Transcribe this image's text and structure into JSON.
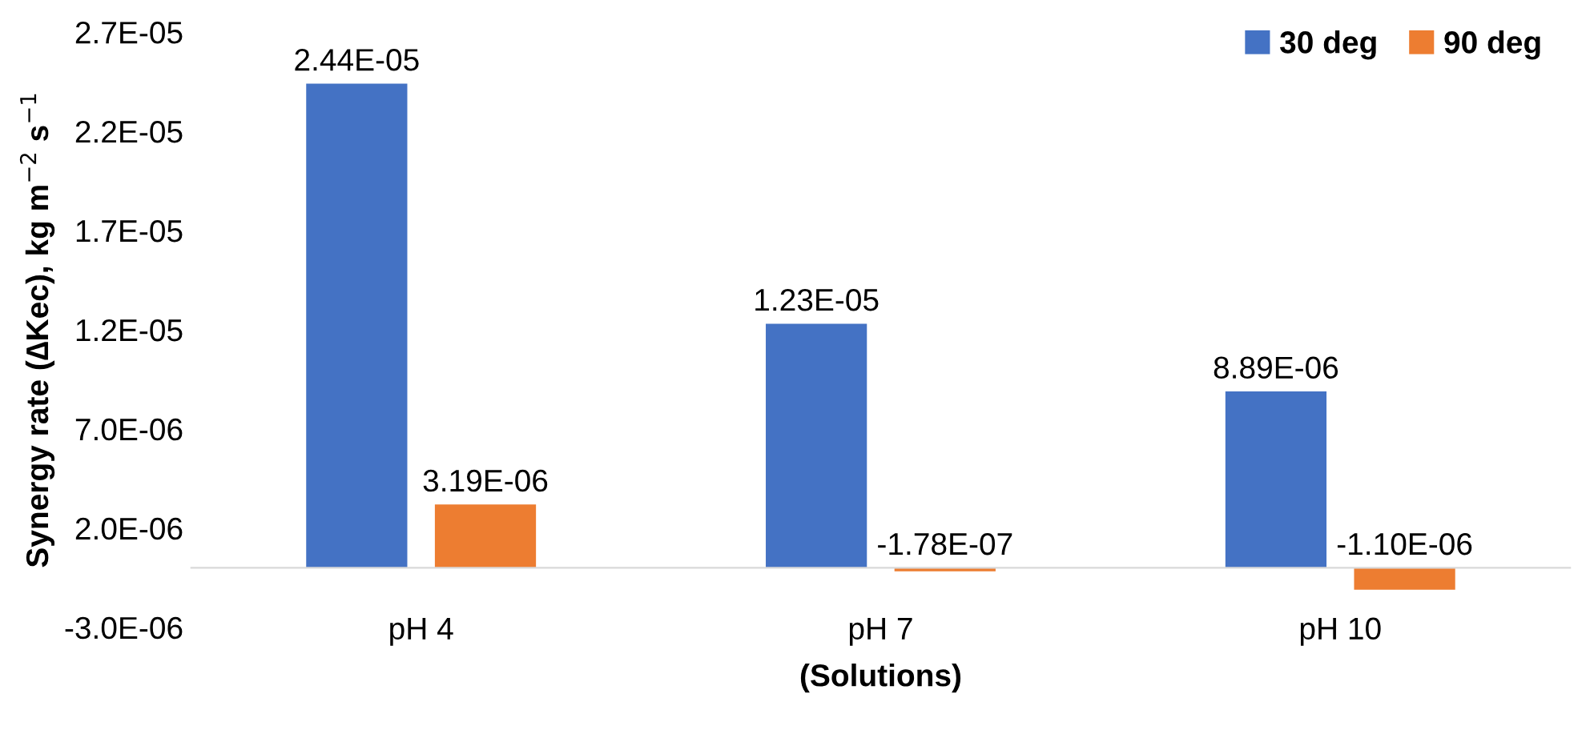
{
  "chart_data": {
    "type": "bar",
    "categories": [
      "pH 4",
      "pH 7",
      "pH 10"
    ],
    "xlabel": "(Solutions)",
    "ylabel": "Synergy rate (∆Kec), kg m$^{−2}$ s$^{−1}$",
    "series": [
      {
        "name": "30 deg",
        "color": "#4472c4",
        "values": [
          2.44e-05,
          1.23e-05,
          8.89e-06
        ],
        "value_labels": [
          "2.44E-05",
          "1.23E-05",
          "8.89E-06"
        ]
      },
      {
        "name": "90 deg",
        "color": "#ed7d31",
        "values": [
          3.19e-06,
          -1.78e-07,
          -1.1e-06
        ],
        "value_labels": [
          "3.19E-06",
          "-1.78E-07",
          "-1.10E-06"
        ]
      }
    ],
    "ylim": [
      -3e-06,
      2.7e-05
    ],
    "yticks": [
      {
        "value": -3e-06,
        "label": "-3.0E-06"
      },
      {
        "value": 2e-06,
        "label": "2.0E-06"
      },
      {
        "value": 7e-06,
        "label": "7.0E-06"
      },
      {
        "value": 1.2e-05,
        "label": "1.2E-05"
      },
      {
        "value": 1.7e-05,
        "label": "1.7E-05"
      },
      {
        "value": 2.2e-05,
        "label": "2.2E-05"
      },
      {
        "value": 2.7e-05,
        "label": "2.7E-05"
      }
    ],
    "grid": false,
    "legend": "top right"
  }
}
